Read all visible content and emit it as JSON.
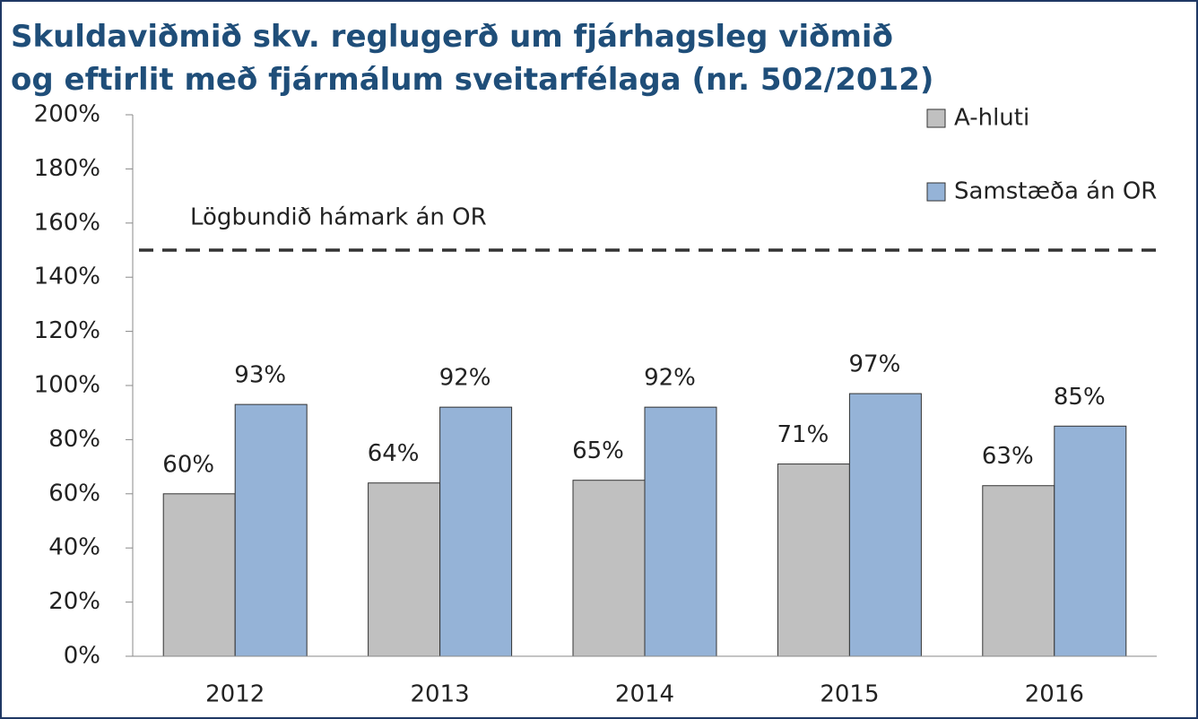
{
  "chart_data": {
    "type": "bar",
    "title": [
      "Skuldaviðmið skv. reglugerð um fjárhagsleg viðmið",
      "og eftirlit með fjármálum sveitarfélaga (nr. 502/2012)"
    ],
    "categories": [
      "2012",
      "2013",
      "2014",
      "2015",
      "2016"
    ],
    "series": [
      {
        "name": "A-hluti",
        "color": "#c0c0c0",
        "values": [
          60,
          64,
          65,
          71,
          63
        ],
        "value_labels": [
          "60%",
          "64%",
          "65%",
          "71%",
          "63%"
        ]
      },
      {
        "name": "Samstæða án OR",
        "color": "#95b3d7",
        "values": [
          93,
          92,
          92,
          97,
          85
        ],
        "value_labels": [
          "93%",
          "92%",
          "92%",
          "97%",
          "85%"
        ]
      }
    ],
    "reference_line": {
      "value": 150,
      "label": "Lögbundið hámark án OR"
    },
    "ylim": [
      0,
      200
    ],
    "yticks": [
      {
        "value": 0,
        "label": "0%"
      },
      {
        "value": 20,
        "label": "20%"
      },
      {
        "value": 40,
        "label": "40%"
      },
      {
        "value": 60,
        "label": "60%"
      },
      {
        "value": 80,
        "label": "80%"
      },
      {
        "value": 100,
        "label": "100%"
      },
      {
        "value": 120,
        "label": "120%"
      },
      {
        "value": 140,
        "label": "140%"
      },
      {
        "value": 160,
        "label": "160%"
      },
      {
        "value": 180,
        "label": "180%"
      },
      {
        "value": 200,
        "label": "200%"
      }
    ],
    "grid": false,
    "legend": "top-right"
  }
}
